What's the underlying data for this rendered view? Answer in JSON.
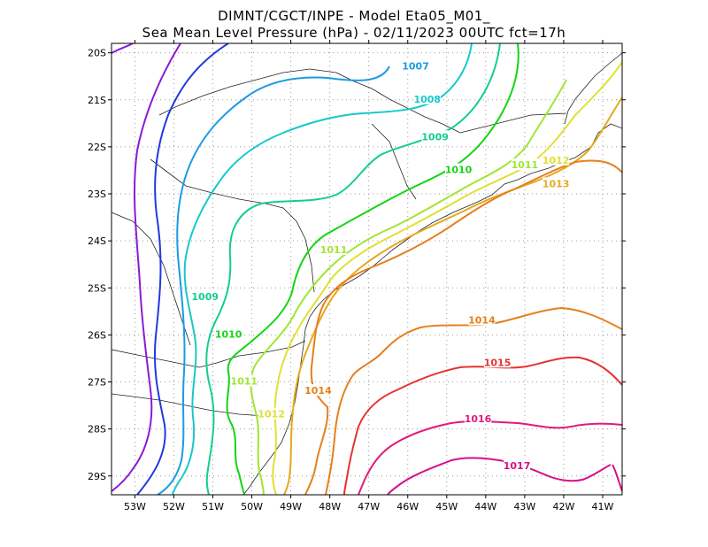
{
  "title": {
    "line1": "DIMNT/CGCT/INPE -  Model Eta05_M01_",
    "line2": "Sea Mean Level Pressure (hPa) - 02/11/2023 00UTC fct=17h"
  },
  "axes": {
    "lat_ticks": [
      "20S",
      "21S",
      "22S",
      "23S",
      "24S",
      "25S",
      "26S",
      "27S",
      "28S",
      "29S"
    ],
    "lon_ticks": [
      "53W",
      "52W",
      "51W",
      "50W",
      "49W",
      "48W",
      "47W",
      "46W",
      "45W",
      "44W",
      "43W",
      "42W",
      "41W"
    ]
  },
  "chart_data": {
    "type": "contour",
    "title": "Sea Mean Level Pressure (hPa)",
    "units": "hPa",
    "lon_range": [
      -53.6,
      -40.5
    ],
    "lat_range": [
      -29.4,
      -19.8
    ],
    "levels": [
      1005,
      1006,
      1007,
      1008,
      1009,
      1010,
      1011,
      1012,
      1013,
      1014,
      1015,
      1016,
      1017
    ],
    "level_colors": {
      "1005": "#8a1ad6",
      "1006": "#2238e0",
      "1007": "#1a9be6",
      "1008": "#16c9c9",
      "1009": "#12cf8c",
      "1010": "#14d514",
      "1011": "#a0e632",
      "1012": "#e0e032",
      "1013": "#e6a91e",
      "1014": "#e67f1e",
      "1015": "#e63232",
      "1016": "#e01b7c",
      "1017": "#d6108a"
    },
    "labels": [
      {
        "text": "1007",
        "lon": -45.8,
        "lat": -20.3,
        "color": "#1a9be6"
      },
      {
        "text": "1008",
        "lon": -45.5,
        "lat": -21.0,
        "color": "#16c9c9"
      },
      {
        "text": "1009",
        "lon": -45.3,
        "lat": -21.8,
        "color": "#12cf8c"
      },
      {
        "text": "1010",
        "lon": -44.7,
        "lat": -22.5,
        "color": "#14d514"
      },
      {
        "text": "1011",
        "lon": -43.0,
        "lat": -22.4,
        "color": "#a0e632"
      },
      {
        "text": "1012",
        "lon": -42.2,
        "lat": -22.3,
        "color": "#e0e032"
      },
      {
        "text": "1013",
        "lon": -42.2,
        "lat": -22.8,
        "color": "#e6a91e"
      },
      {
        "text": "1011",
        "lon": -47.9,
        "lat": -24.2,
        "color": "#a0e632"
      },
      {
        "text": "1009",
        "lon": -51.2,
        "lat": -25.2,
        "color": "#12cf8c"
      },
      {
        "text": "1010",
        "lon": -50.6,
        "lat": -26.0,
        "color": "#14d514"
      },
      {
        "text": "1011",
        "lon": -50.2,
        "lat": -27.0,
        "color": "#a0e632"
      },
      {
        "text": "1012",
        "lon": -49.5,
        "lat": -27.7,
        "color": "#e0e032"
      },
      {
        "text": "1014",
        "lon": -48.3,
        "lat": -27.2,
        "color": "#e67f1e"
      },
      {
        "text": "1014",
        "lon": -44.1,
        "lat": -25.7,
        "color": "#e67f1e"
      },
      {
        "text": "1015",
        "lon": -43.7,
        "lat": -26.6,
        "color": "#e63232"
      },
      {
        "text": "1016",
        "lon": -44.2,
        "lat": -27.8,
        "color": "#e01b7c"
      },
      {
        "text": "1017",
        "lon": -43.2,
        "lat": -28.8,
        "color": "#d6108a"
      }
    ]
  }
}
